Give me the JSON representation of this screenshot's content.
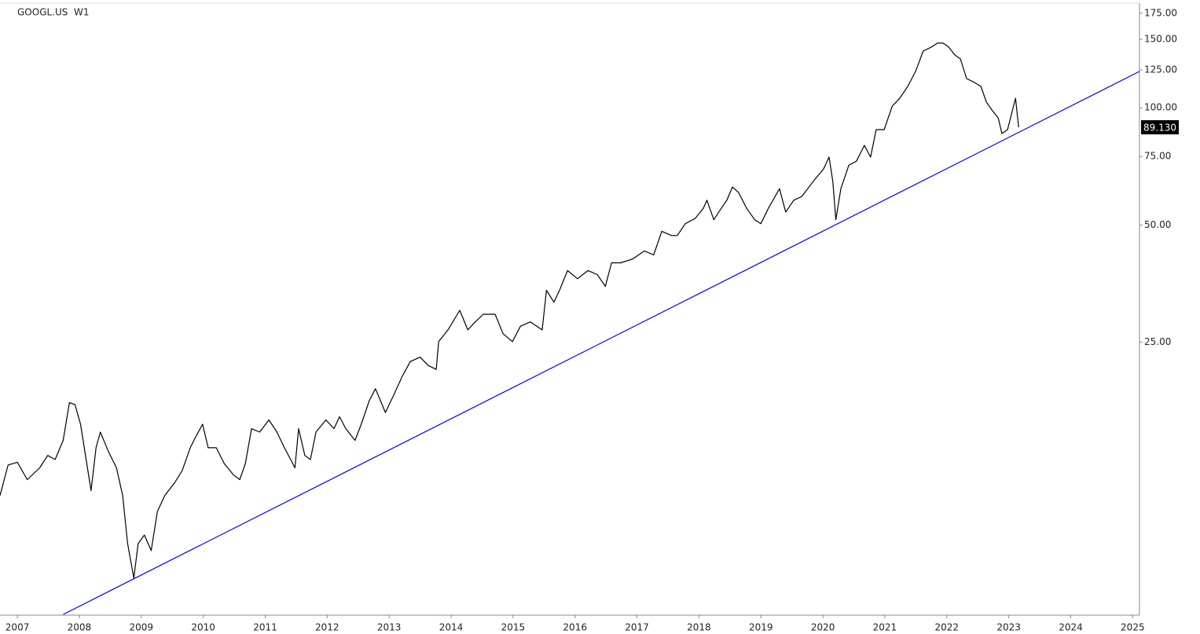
{
  "chart_data": {
    "type": "line",
    "title": "GOOGL.US  W1",
    "log_y": true,
    "color": "#000000",
    "x": [
      2006.72,
      2006.85,
      2007.0,
      2007.16,
      2007.36,
      2007.49,
      2007.61,
      2007.74,
      2007.84,
      2007.93,
      2008.02,
      2008.12,
      2008.19,
      2008.27,
      2008.34,
      2008.47,
      2008.6,
      2008.7,
      2008.78,
      2008.88,
      2008.95,
      2009.05,
      2009.16,
      2009.26,
      2009.38,
      2009.54,
      2009.66,
      2009.79,
      2009.89,
      2009.99,
      2010.08,
      2010.21,
      2010.34,
      2010.49,
      2010.59,
      2010.68,
      2010.78,
      2010.91,
      2011.06,
      2011.19,
      2011.31,
      2011.41,
      2011.48,
      2011.54,
      2011.64,
      2011.73,
      2011.82,
      2011.98,
      2012.11,
      2012.2,
      2012.3,
      2012.45,
      2012.55,
      2012.68,
      2012.78,
      2012.94,
      2013.06,
      2013.21,
      2013.34,
      2013.5,
      2013.63,
      2013.76,
      2013.8,
      2013.95,
      2014.14,
      2014.27,
      2014.39,
      2014.52,
      2014.71,
      2014.84,
      2014.99,
      2015.12,
      2015.28,
      2015.47,
      2015.54,
      2015.66,
      2015.75,
      2015.88,
      2016.04,
      2016.21,
      2016.36,
      2016.49,
      2016.59,
      2016.74,
      2016.93,
      2017.12,
      2017.27,
      2017.4,
      2017.56,
      2017.65,
      2017.78,
      2017.94,
      2018.07,
      2018.13,
      2018.24,
      2018.36,
      2018.45,
      2018.54,
      2018.64,
      2018.77,
      2018.9,
      2019.0,
      2019.12,
      2019.3,
      2019.4,
      2019.53,
      2019.66,
      2019.85,
      2020.01,
      2020.1,
      2020.16,
      2020.21,
      2020.29,
      2020.42,
      2020.54,
      2020.67,
      2020.77,
      2020.86,
      2020.99,
      2021.12,
      2021.24,
      2021.37,
      2021.5,
      2021.62,
      2021.75,
      2021.85,
      2021.94,
      2022.03,
      2022.13,
      2022.22,
      2022.32,
      2022.45,
      2022.55,
      2022.64,
      2022.73,
      2022.83,
      2022.89,
      2022.98,
      2023.06,
      2023.11,
      2023.16
    ],
    "values": [
      10.1,
      12.1,
      12.3,
      11.1,
      11.9,
      12.8,
      12.5,
      14.0,
      17.5,
      17.3,
      15.4,
      12.2,
      10.4,
      13.4,
      14.7,
      13.1,
      11.9,
      10.1,
      7.6,
      6.2,
      7.6,
      8.0,
      7.3,
      9.2,
      10.1,
      10.9,
      11.7,
      13.4,
      14.4,
      15.4,
      13.4,
      13.4,
      12.2,
      11.4,
      11.1,
      12.2,
      15.0,
      14.7,
      15.8,
      14.7,
      13.4,
      12.5,
      11.9,
      15.0,
      12.8,
      12.5,
      14.7,
      15.8,
      15.0,
      16.1,
      15.0,
      14.0,
      15.4,
      17.7,
      19.0,
      16.5,
      18.1,
      20.4,
      22.3,
      22.9,
      21.8,
      21.3,
      25.1,
      26.9,
      30.2,
      26.9,
      28.2,
      29.5,
      29.5,
      26.3,
      25.1,
      27.5,
      28.2,
      26.9,
      34.0,
      31.7,
      34.0,
      38.2,
      36.4,
      38.2,
      37.3,
      34.8,
      40.0,
      40.0,
      40.9,
      42.9,
      41.9,
      48.2,
      47.0,
      47.0,
      50.4,
      52.0,
      55.2,
      57.9,
      51.6,
      55.2,
      57.9,
      62.6,
      60.6,
      55.2,
      51.6,
      50.4,
      55.2,
      62.0,
      54.0,
      57.9,
      59.2,
      64.9,
      69.6,
      74.7,
      64.9,
      51.6,
      62.0,
      71.3,
      72.9,
      80.1,
      74.7,
      87.9,
      87.9,
      101.0,
      105.8,
      113.5,
      124.5,
      139.9,
      143.2,
      146.6,
      146.6,
      143.2,
      136.7,
      133.5,
      118.9,
      116.1,
      113.5,
      103.4,
      98.7,
      94.2,
      85.9,
      87.9,
      98.7,
      105.8,
      89.13
    ],
    "trendline": {
      "x": [
        2007.74,
        2025.11
      ],
      "values": [
        5.0,
        124
      ],
      "color": "#0000ff"
    },
    "last_value": {
      "value": 89.13,
      "label": "89.130"
    },
    "xlim": [
      2006.72,
      2025.11
    ],
    "ylim": [
      4.98,
      185.7
    ],
    "xticks": [
      2007,
      2008,
      2009,
      2010,
      2011,
      2012,
      2013,
      2014,
      2015,
      2016,
      2017,
      2018,
      2019,
      2020,
      2021,
      2022,
      2023,
      2024,
      2025
    ],
    "yticks": [
      {
        "value": 25,
        "label": "25.00"
      },
      {
        "value": 50,
        "label": "50.00"
      },
      {
        "value": 75,
        "label": "75.00"
      },
      {
        "value": 100,
        "label": "100.00"
      },
      {
        "value": 125,
        "label": "125.00"
      },
      {
        "value": 150,
        "label": "150.00"
      },
      {
        "value": 175,
        "label": "175.00"
      }
    ]
  }
}
